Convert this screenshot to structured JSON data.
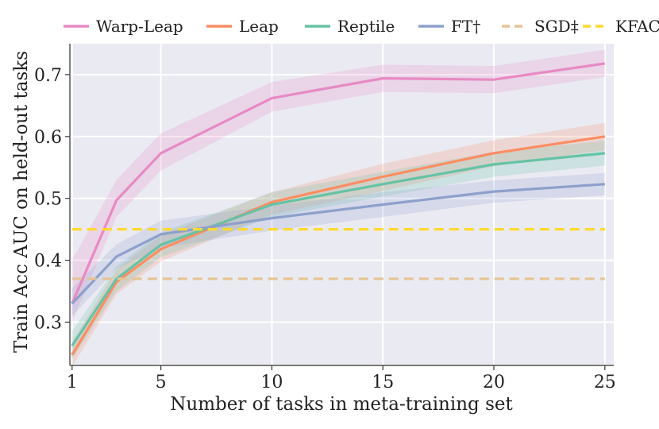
{
  "chart_data": {
    "type": "line",
    "title": "",
    "xlabel": "Number of tasks in meta-training set",
    "ylabel": "Train Acc AUC on held-out tasks",
    "xlim": [
      0.9,
      25.4
    ],
    "ylim": [
      0.23,
      0.75
    ],
    "xticks": [
      1,
      5,
      10,
      15,
      20,
      25
    ],
    "yticks": [
      0.3,
      0.4,
      0.5,
      0.6,
      0.7
    ],
    "xtick_labels": [
      "1",
      "5",
      "10",
      "15",
      "20",
      "25"
    ],
    "ytick_labels": [
      "0.3",
      "0.4",
      "0.5",
      "0.6",
      "0.7"
    ],
    "grid": true,
    "legend_position": "top",
    "series": [
      {
        "name": "Warp-Leap",
        "color": "#e78ac3",
        "style": "solid",
        "x": [
          1,
          3,
          5,
          10,
          15,
          20,
          25
        ],
        "y": [
          0.33,
          0.497,
          0.573,
          0.662,
          0.694,
          0.692,
          0.718
        ],
        "lower": [
          0.3,
          0.47,
          0.545,
          0.64,
          0.672,
          0.67,
          0.696
        ],
        "upper": [
          0.4,
          0.53,
          0.605,
          0.688,
          0.716,
          0.714,
          0.74
        ]
      },
      {
        "name": "Leap",
        "color": "#fc8d62",
        "style": "solid",
        "x": [
          1,
          3,
          5,
          10,
          15,
          20,
          25
        ],
        "y": [
          0.247,
          0.365,
          0.418,
          0.494,
          0.535,
          0.573,
          0.6
        ],
        "lower": [
          0.228,
          0.345,
          0.398,
          0.474,
          0.512,
          0.552,
          0.578
        ],
        "upper": [
          0.268,
          0.385,
          0.44,
          0.51,
          0.556,
          0.594,
          0.622
        ]
      },
      {
        "name": "Reptile",
        "color": "#66c2a5",
        "style": "solid",
        "x": [
          1,
          3,
          5,
          10,
          15,
          20,
          25
        ],
        "y": [
          0.262,
          0.37,
          0.425,
          0.49,
          0.523,
          0.555,
          0.573
        ],
        "lower": [
          0.24,
          0.35,
          0.405,
          0.47,
          0.503,
          0.535,
          0.553
        ],
        "upper": [
          0.285,
          0.39,
          0.445,
          0.51,
          0.543,
          0.575,
          0.593
        ]
      },
      {
        "name": "FT†",
        "color": "#8da0cb",
        "style": "solid",
        "x": [
          1,
          3,
          5,
          10,
          15,
          20,
          25
        ],
        "y": [
          0.33,
          0.406,
          0.442,
          0.468,
          0.49,
          0.511,
          0.523
        ],
        "lower": [
          0.31,
          0.386,
          0.42,
          0.448,
          0.47,
          0.493,
          0.505
        ],
        "upper": [
          0.355,
          0.426,
          0.464,
          0.488,
          0.51,
          0.529,
          0.541
        ]
      },
      {
        "name": "SGD‡",
        "color": "#e5c494",
        "style": "dashed",
        "x": [
          1,
          25
        ],
        "y": [
          0.37,
          0.37
        ]
      },
      {
        "name": "KFAC‡",
        "color": "#ffd92f",
        "style": "dashed",
        "x": [
          1,
          25
        ],
        "y": [
          0.45,
          0.45
        ]
      }
    ]
  }
}
